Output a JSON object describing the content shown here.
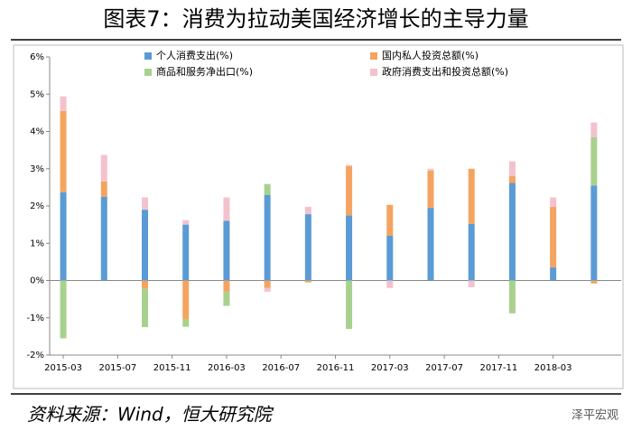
{
  "chart_data": {
    "type": "bar",
    "stacked": true,
    "title": "图表7：消费为拉动美国经济增长的主导力量",
    "source": "资料来源：Wind，恒大研究院",
    "watermark": "泽平宏观",
    "x": [
      "2015-03",
      "2015-06",
      "2015-09",
      "2015-12",
      "2016-03",
      "2016-06",
      "2016-09",
      "2016-12",
      "2017-03",
      "2017-06",
      "2017-09",
      "2017-12",
      "2018-03",
      "2018-06"
    ],
    "xlim": [
      "2015-02",
      "2018-08"
    ],
    "xticks": [
      "2015-03",
      "2015-07",
      "2015-11",
      "2016-03",
      "2016-07",
      "2016-11",
      "2017-03",
      "2017-07",
      "2017-11",
      "2018-03"
    ],
    "ylim": [
      -2,
      6
    ],
    "yticks": [
      {
        "value": -2,
        "label": "-2%"
      },
      {
        "value": -1,
        "label": "-1%"
      },
      {
        "value": 0,
        "label": "0%"
      },
      {
        "value": 1,
        "label": "1%"
      },
      {
        "value": 2,
        "label": "2%"
      },
      {
        "value": 3,
        "label": "3%"
      },
      {
        "value": 4,
        "label": "4%"
      },
      {
        "value": 5,
        "label": "5%"
      },
      {
        "value": 6,
        "label": "6%"
      }
    ],
    "series": [
      {
        "name": "个人消费支出(%)",
        "color": "#5b9bd5",
        "values": [
          2.37,
          2.25,
          1.9,
          1.5,
          1.6,
          2.3,
          1.78,
          1.75,
          1.2,
          1.95,
          1.52,
          2.62,
          0.35,
          2.55
        ]
      },
      {
        "name": "国内私人投资总额(%)",
        "color": "#f4a460",
        "values": [
          2.18,
          0.41,
          -0.22,
          -1.04,
          -0.3,
          -0.2,
          -0.05,
          1.32,
          0.83,
          1.0,
          1.48,
          0.18,
          1.63,
          -0.08
        ]
      },
      {
        "name": "商品和服务净出口(%)",
        "color": "#a9d18e",
        "values": [
          -1.55,
          0,
          -1.03,
          -0.2,
          -0.38,
          0.29,
          0,
          -1.3,
          0,
          0,
          0,
          -0.88,
          0,
          1.3
        ]
      },
      {
        "name": "政府消费支出和投资总额(%)",
        "color": "#f4c2cc",
        "values": [
          0.39,
          0.71,
          0.33,
          0.12,
          0.63,
          -0.1,
          0.2,
          0.03,
          -0.2,
          0.05,
          -0.18,
          0.4,
          0.25,
          0.39
        ]
      }
    ]
  }
}
